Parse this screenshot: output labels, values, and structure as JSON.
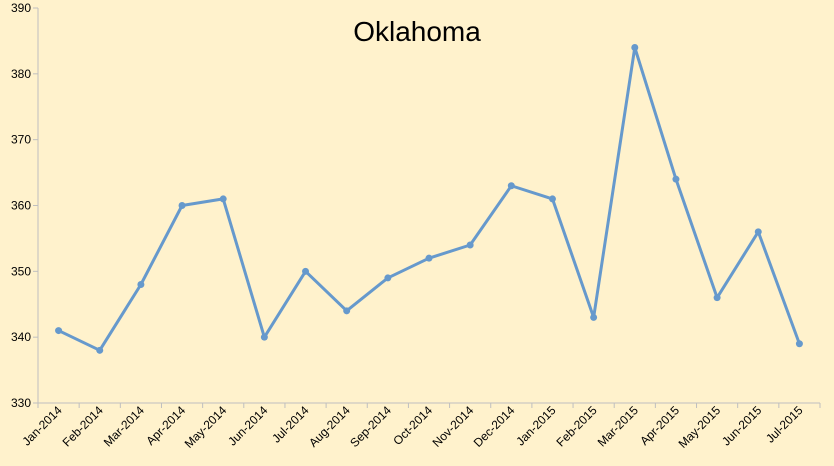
{
  "chart_data": {
    "type": "line",
    "title": "Oklahoma",
    "xlabel": "",
    "ylabel": "",
    "categories": [
      "Jan-2014",
      "Feb-2014",
      "Mar-2014",
      "Apr-2014",
      "May-2014",
      "Jun-2014",
      "Jul-2014",
      "Aug-2014",
      "Sep-2014",
      "Oct-2014",
      "Nov-2014",
      "Dec-2014",
      "Jan-2015",
      "Feb-2015",
      "Mar-2015",
      "Apr-2015",
      "May-2015",
      "Jun-2015",
      "Jul-2015"
    ],
    "series": [
      {
        "values": [
          341,
          338,
          348,
          360,
          361,
          340,
          350,
          344,
          349,
          352,
          354,
          363,
          361,
          343,
          384,
          364,
          346,
          356,
          339
        ],
        "color": "#6699cc"
      }
    ],
    "ylim": [
      330,
      390
    ],
    "yticks": [
      330,
      340,
      350,
      360,
      370,
      380,
      390
    ],
    "grid": false,
    "legend": "none",
    "colors": {
      "background": "#fff2cc",
      "axis": "#bfbfbf",
      "text": "#000000"
    }
  }
}
